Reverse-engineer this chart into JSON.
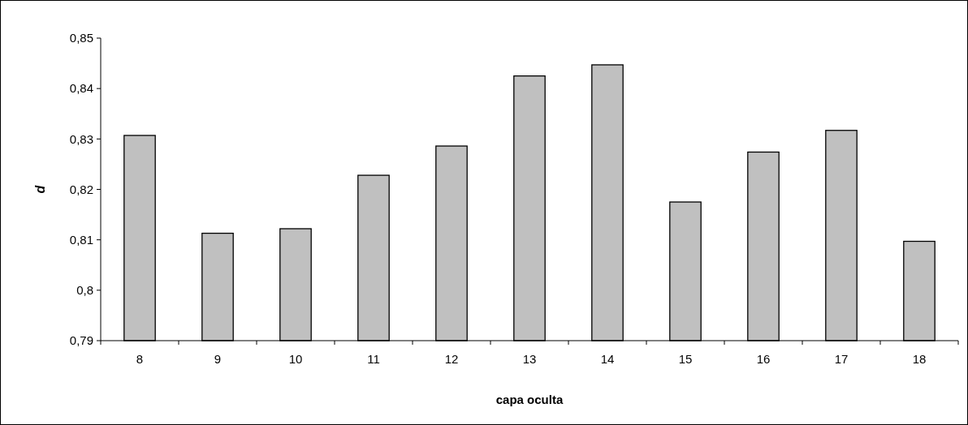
{
  "chart_data": {
    "type": "bar",
    "xlabel": "capa oculta",
    "ylabel": "d",
    "categories": [
      "8",
      "9",
      "10",
      "11",
      "12",
      "13",
      "14",
      "15",
      "16",
      "17",
      "18"
    ],
    "values": [
      0.8307,
      0.8113,
      0.8122,
      0.8228,
      0.8286,
      0.8425,
      0.8447,
      0.8175,
      0.8274,
      0.8317,
      0.8097
    ],
    "color": "#c0c0c0",
    "ylim": [
      0.79,
      0.85
    ],
    "yticks": [
      {
        "value": 0.79,
        "label": "0,79"
      },
      {
        "value": 0.8,
        "label": "0,8"
      },
      {
        "value": 0.81,
        "label": "0,81"
      },
      {
        "value": 0.82,
        "label": "0,82"
      },
      {
        "value": 0.83,
        "label": "0,83"
      },
      {
        "value": 0.84,
        "label": "0,84"
      },
      {
        "value": 0.85,
        "label": "0,85"
      }
    ],
    "grid": false
  }
}
